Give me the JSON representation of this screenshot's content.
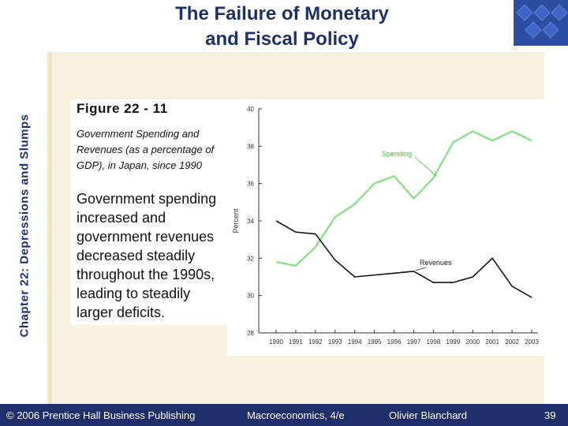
{
  "slide": {
    "title_lines": [
      "The Failure of Monetary",
      "and Fiscal Policy"
    ],
    "side_title": "Chapter 22: Depressions and Slumps",
    "figure_label": "Figure 22 - 11",
    "figure_caption": "Government Spending and Revenues (as a percentage of GDP), in Japan, since 1990",
    "note": "Government spending increased and government revenues decreased steadily throughout the 1990s, leading to steadily larger deficits."
  },
  "footer": {
    "copyright": "© 2006 Prentice Hall Business Publishing",
    "book": "Macroeconomics, 4/e",
    "author": "Olivier Blanchard",
    "page": "39"
  },
  "colors": {
    "title": "#1f2f6a",
    "footer_bg": "#1f2f6a",
    "spending": "#7fe07f",
    "revenues": "#111111",
    "panel_bg": "#f7f2df"
  },
  "chart_data": {
    "type": "line",
    "ylabel": "Percent",
    "ylim": [
      28,
      40
    ],
    "yticks": [
      "28",
      "30",
      "32",
      "34",
      "36",
      "38",
      "40"
    ],
    "x": [
      "1990",
      "1991",
      "1992",
      "1993",
      "1994",
      "1995",
      "1996",
      "1997",
      "1998",
      "1999",
      "2000",
      "2001",
      "2002",
      "2003"
    ],
    "series": [
      {
        "name": "Spending",
        "values": [
          31.8,
          31.6,
          32.6,
          34.2,
          34.9,
          36.0,
          36.4,
          35.2,
          36.3,
          38.2,
          38.8,
          38.3,
          38.8,
          38.3
        ]
      },
      {
        "name": "Revenues",
        "values": [
          34.0,
          33.4,
          33.3,
          31.9,
          31.0,
          31.1,
          31.2,
          31.3,
          30.7,
          30.7,
          31.0,
          32.0,
          30.5,
          29.9
        ]
      }
    ]
  }
}
